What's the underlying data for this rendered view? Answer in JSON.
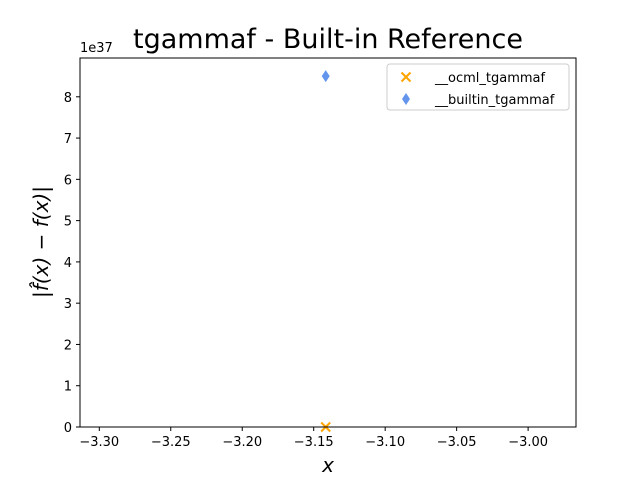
{
  "chart_data": {
    "type": "scatter",
    "title": "tgammaf - Built-in Reference",
    "xlabel": "x",
    "ylabel": "|f̂(x) − f(x)|",
    "y_offset_label": "1e37",
    "y_scale_exponent": 37,
    "xlim": [
      -3.3135,
      -2.9665
    ],
    "ylim": [
      0,
      8.94
    ],
    "x_ticks": [
      -3.3,
      -3.25,
      -3.2,
      -3.15,
      -3.1,
      -3.05,
      -3.0
    ],
    "x_tick_labels": [
      "−3.30",
      "−3.25",
      "−3.20",
      "−3.15",
      "−3.10",
      "−3.05",
      "−3.00"
    ],
    "y_ticks": [
      0,
      1,
      2,
      3,
      4,
      5,
      6,
      7,
      8
    ],
    "y_tick_labels": [
      "0",
      "1",
      "2",
      "3",
      "4",
      "5",
      "6",
      "7",
      "8"
    ],
    "legend_position": "top-right",
    "series": [
      {
        "name": "__ocml_tgammaf",
        "marker": "x",
        "color": "#ffa500",
        "points": [
          {
            "x": -3.1416,
            "y": 0
          }
        ]
      },
      {
        "name": "__builtin_tgammaf",
        "marker": "diamond",
        "color": "#6495ed",
        "points": [
          {
            "x": -3.1416,
            "y": 8.5
          }
        ]
      }
    ]
  }
}
